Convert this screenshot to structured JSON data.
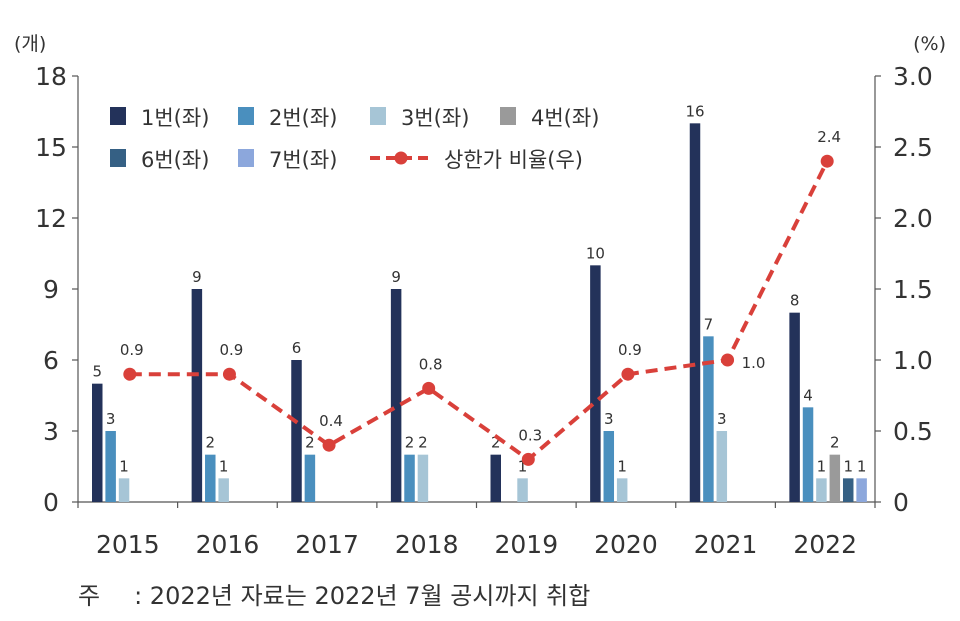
{
  "chart_data": {
    "type": "bar",
    "left_unit": "(개)",
    "right_unit": "(%)",
    "categories": [
      "2015",
      "2016",
      "2017",
      "2018",
      "2019",
      "2020",
      "2021",
      "2022"
    ],
    "y_left": {
      "ticks": [
        "0",
        "3",
        "6",
        "9",
        "12",
        "15",
        "18"
      ],
      "range": [
        0,
        18
      ]
    },
    "y_right": {
      "ticks": [
        "0",
        "0.5",
        "1.0",
        "1.5",
        "2.0",
        "2.5",
        "3.0"
      ],
      "range": [
        0,
        3.0
      ]
    },
    "series": [
      {
        "name": "1번(좌)",
        "kind": "bar",
        "color": "#23325a",
        "values": [
          5,
          9,
          6,
          9,
          2,
          10,
          16,
          8
        ]
      },
      {
        "name": "2번(좌)",
        "kind": "bar",
        "color": "#4a8fbe",
        "values": [
          3,
          2,
          2,
          2,
          null,
          3,
          7,
          4
        ]
      },
      {
        "name": "3번(좌)",
        "kind": "bar",
        "color": "#a6c5d6",
        "values": [
          1,
          1,
          null,
          2,
          1,
          1,
          3,
          1
        ]
      },
      {
        "name": "4번(좌)",
        "kind": "bar",
        "color": "#9a9a9a",
        "values": [
          null,
          null,
          null,
          null,
          null,
          null,
          null,
          2
        ]
      },
      {
        "name": "6번(좌)",
        "kind": "bar",
        "color": "#356084",
        "values": [
          null,
          null,
          null,
          null,
          null,
          null,
          null,
          1
        ]
      },
      {
        "name": "7번(좌)",
        "kind": "bar",
        "color": "#8ca7dc",
        "values": [
          null,
          null,
          null,
          null,
          null,
          null,
          null,
          1
        ]
      },
      {
        "name": "상한가 비율(우)",
        "kind": "line",
        "axis": "right",
        "color": "#d9403a",
        "style": "dashed",
        "marker": "circle",
        "values": [
          0.9,
          0.9,
          0.4,
          0.8,
          0.3,
          0.9,
          1.0,
          2.4
        ],
        "labels": [
          "0.9",
          "0.9",
          "0.4",
          "0.8",
          "0.3",
          "0.9",
          "1.0",
          "2.4"
        ]
      }
    ],
    "legend_position": "top-left",
    "grid": false
  },
  "footnote": {
    "label": "주",
    "text": ": 2022년 자료는 2022년 7월 공시까지 취합"
  }
}
